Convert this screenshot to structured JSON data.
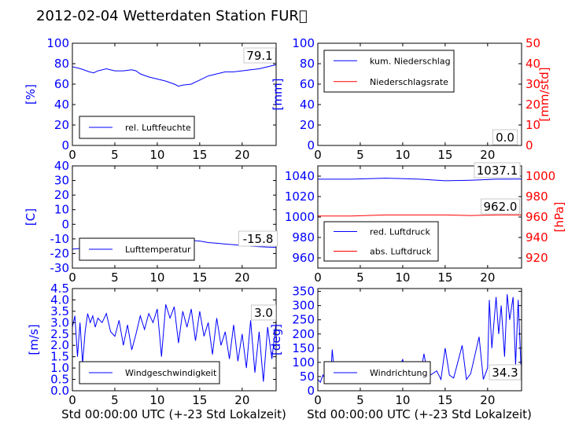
{
  "figure": {
    "title": "2012-02-04 Wetterdaten Station FUR\u0000",
    "xlabel": "Std 00:00:00 UTC (+-23 Std Lokalzeit)"
  },
  "colors": {
    "primary": "#0000ff",
    "secondary": "#ff0000",
    "axis": "#000000"
  },
  "chart_data": [
    {
      "id": "humidity",
      "type": "line",
      "ylabel": "[%]",
      "ylim": [
        0,
        100
      ],
      "yticks": [
        0,
        20,
        40,
        60,
        80,
        100
      ],
      "xlim": [
        0,
        24
      ],
      "xticks": [
        0,
        5,
        10,
        15,
        20
      ],
      "legend_placement": "lower-left",
      "annotation": "79.1",
      "series": [
        {
          "name": "rel. Luftfeuchte",
          "axis": "left",
          "color": "#0000ff",
          "x": [
            0,
            1,
            2,
            2.5,
            3,
            4,
            5,
            6,
            7,
            7.5,
            8,
            9,
            10,
            11,
            12,
            12.5,
            13,
            14,
            15,
            16,
            17,
            18,
            19,
            20,
            21,
            22,
            23,
            24
          ],
          "y": [
            77,
            75,
            72,
            71,
            73,
            75,
            73,
            73,
            74,
            73,
            70,
            67,
            65,
            63,
            60,
            58,
            59,
            60,
            64,
            68,
            70,
            72,
            72,
            73,
            74,
            75,
            77,
            79
          ]
        }
      ]
    },
    {
      "id": "precipitation",
      "type": "line",
      "ylabel": "[mm]",
      "ylim": [
        0,
        100
      ],
      "yticks": [
        0,
        20,
        40,
        60,
        80,
        100
      ],
      "ylabel_right": "[mm/std]",
      "ylim_right": [
        0,
        50
      ],
      "yticks_right": [
        0,
        10,
        20,
        30,
        40,
        50
      ],
      "xlim": [
        0,
        24
      ],
      "xticks": [
        0,
        5,
        10,
        15,
        20
      ],
      "legend_placement": "top-left",
      "annotation": "0.0",
      "series": [
        {
          "name": "kum. Niederschlag",
          "axis": "left",
          "color": "#0000ff",
          "x": [
            0,
            24
          ],
          "y": [
            0,
            0
          ]
        },
        {
          "name": "Niederschlagsrate",
          "axis": "right",
          "color": "#ff0000",
          "x": [
            0,
            24
          ],
          "y": [
            0,
            0
          ]
        }
      ]
    },
    {
      "id": "temperature",
      "type": "line",
      "ylabel": "[C]",
      "ylim": [
        -30,
        40
      ],
      "yticks": [
        -30,
        -20,
        -10,
        0,
        10,
        20,
        30,
        40
      ],
      "xlim": [
        0,
        24
      ],
      "xticks": [
        0,
        5,
        10,
        15,
        20
      ],
      "legend_placement": "lower-left",
      "annotation": "-15.8",
      "series": [
        {
          "name": "Lufttemperatur",
          "axis": "left",
          "color": "#0000ff",
          "x": [
            0,
            2,
            4,
            6,
            8,
            10,
            12,
            13,
            14,
            15,
            16,
            17,
            18,
            19,
            20,
            21,
            22,
            23,
            24
          ],
          "y": [
            -17,
            -16,
            -14.5,
            -13,
            -12,
            -11.5,
            -11,
            -10.5,
            -11,
            -11.5,
            -12.5,
            -13,
            -13.5,
            -14,
            -14.5,
            -15,
            -15.3,
            -15.6,
            -15.8
          ]
        }
      ]
    },
    {
      "id": "pressure",
      "type": "line",
      "ylabel_right": "[hPa]",
      "ylim": [
        950,
        1050
      ],
      "yticks": [
        960,
        980,
        1000,
        1020,
        1040
      ],
      "ylim_right": [
        910,
        1010
      ],
      "yticks_right": [
        920,
        940,
        960,
        980,
        1000
      ],
      "xlim": [
        0,
        24
      ],
      "xticks": [
        0,
        5,
        10,
        15,
        20
      ],
      "legend_placement": "lower-left",
      "annotations": [
        "1037.1",
        "962.0"
      ],
      "series": [
        {
          "name": "red. Luftdruck",
          "axis": "left",
          "color": "#0000ff",
          "x": [
            0,
            4,
            8,
            12,
            15,
            18,
            21,
            24
          ],
          "y": [
            1037,
            1037,
            1038,
            1037,
            1035.5,
            1036,
            1037,
            1037.1
          ]
        },
        {
          "name": "abs. Luftdruck",
          "axis": "right",
          "color": "#ff0000",
          "x": [
            0,
            4,
            8,
            12,
            15,
            18,
            21,
            24
          ],
          "y": [
            961,
            961,
            962,
            962,
            962,
            961.5,
            962,
            962
          ]
        }
      ]
    },
    {
      "id": "windspeed",
      "type": "line",
      "ylabel": "[m/s]",
      "ylim": [
        0,
        4.5
      ],
      "yticks": [
        0.0,
        0.5,
        1.0,
        1.5,
        2.0,
        2.5,
        3.0,
        3.5,
        4.0,
        4.5
      ],
      "xlim": [
        0,
        24
      ],
      "xticks": [
        0,
        5,
        10,
        15,
        20
      ],
      "legend_placement": "lower-left",
      "annotation": "3.0",
      "series": [
        {
          "name": "Windgeschwindigkeit",
          "axis": "left",
          "color": "#0000ff",
          "x": [
            0,
            0.3,
            0.6,
            0.9,
            1.2,
            1.5,
            1.8,
            2.1,
            2.4,
            2.7,
            3,
            3.5,
            4,
            4.5,
            5,
            5.5,
            6,
            6.5,
            7,
            7.5,
            8,
            8.5,
            9,
            9.5,
            10,
            10.5,
            11,
            11.5,
            12,
            12.5,
            13,
            13.5,
            14,
            14.5,
            15,
            15.5,
            16,
            16.5,
            17,
            17.5,
            18,
            18.5,
            19,
            19.5,
            20,
            20.5,
            21,
            21.5,
            22,
            22.5,
            23,
            23.5,
            24
          ],
          "y": [
            2.8,
            3.3,
            1.5,
            3.0,
            1.2,
            2.6,
            3.4,
            3.0,
            3.3,
            2.8,
            3.2,
            3.0,
            3.4,
            2.6,
            2.4,
            3.1,
            2.0,
            2.9,
            1.8,
            2.5,
            3.3,
            2.7,
            3.4,
            3.0,
            3.6,
            1.5,
            3.8,
            3.2,
            3.7,
            2.1,
            3.5,
            2.8,
            3.6,
            2.2,
            3.5,
            2.4,
            3.0,
            1.6,
            3.2,
            2.0,
            2.6,
            1.4,
            2.9,
            1.3,
            2.5,
            1.0,
            3.1,
            0.8,
            2.6,
            0.4,
            2.8,
            1.4,
            3.0
          ]
        }
      ]
    },
    {
      "id": "winddirection",
      "type": "line",
      "ylabel": "[deg]",
      "ylim": [
        0,
        360
      ],
      "yticks": [
        0,
        50,
        100,
        150,
        200,
        250,
        300,
        350
      ],
      "xlim": [
        0,
        24
      ],
      "xticks": [
        0,
        5,
        10,
        15,
        20
      ],
      "legend_placement": "lower-left",
      "annotation": "34.3",
      "series": [
        {
          "name": "Windrichtung",
          "axis": "left",
          "color": "#0000ff",
          "x": [
            0,
            0.3,
            0.6,
            1,
            1.5,
            1.7,
            2,
            3,
            4,
            5,
            6,
            7,
            7.5,
            8,
            9,
            10,
            10.5,
            11,
            12,
            12.5,
            13,
            14,
            14.5,
            15,
            15.5,
            16,
            17,
            17.5,
            18,
            19,
            19.5,
            20,
            20.2,
            20.5,
            21,
            21.3,
            21.6,
            22,
            22.3,
            22.6,
            23,
            23.3,
            23.6,
            24
          ],
          "y": [
            40,
            30,
            55,
            35,
            40,
            145,
            45,
            40,
            50,
            45,
            60,
            40,
            90,
            45,
            50,
            110,
            40,
            60,
            45,
            130,
            50,
            70,
            40,
            150,
            55,
            45,
            160,
            40,
            60,
            190,
            40,
            80,
            320,
            150,
            330,
            200,
            300,
            120,
            340,
            250,
            330,
            90,
            320,
            34
          ]
        }
      ]
    }
  ]
}
